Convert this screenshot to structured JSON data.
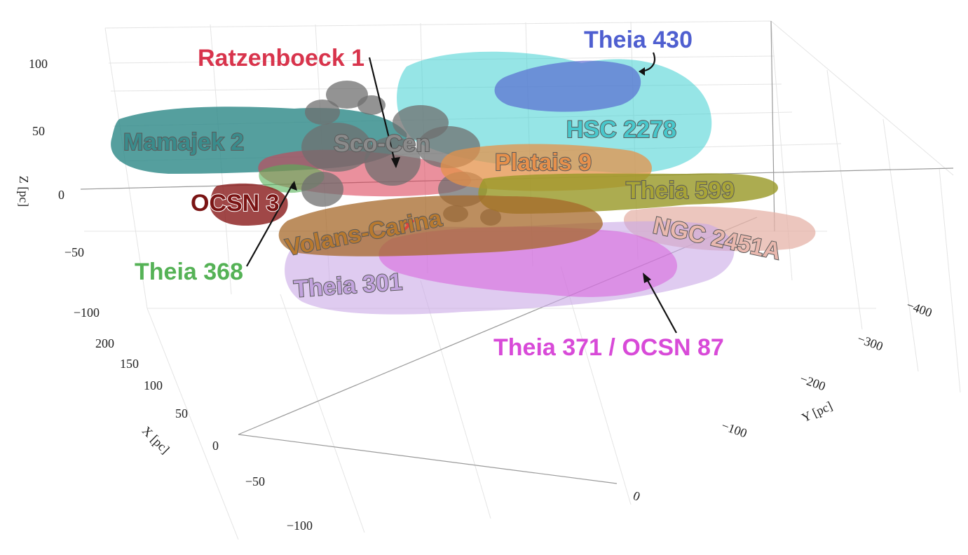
{
  "chart_data": {
    "type": "scatter",
    "projection": "3d",
    "axes": {
      "x": {
        "label": "X [pc]",
        "ticks": [
          "200",
          "150",
          "100",
          "50",
          "0",
          "−50",
          "−100"
        ]
      },
      "y": {
        "label": "Y [pc]",
        "ticks": [
          "−400",
          "−300",
          "−200",
          "−100",
          "0"
        ]
      },
      "z": {
        "label": "Z [pc]",
        "ticks": [
          "100",
          "50",
          "0",
          "−50",
          "−100"
        ]
      }
    },
    "grid": true,
    "marker": {
      "symbol": "×",
      "color": "#e0453a"
    },
    "groups": [
      {
        "id": "mamajek2",
        "name": "Mamajek 2",
        "color": "#2f8a89",
        "label_color": "#3a8c8c"
      },
      {
        "id": "scocen",
        "name": "Sco-Cen",
        "color": "#7a7a7a",
        "label_color": "#8a8a8a"
      },
      {
        "id": "hsc2278",
        "name": "HSC 2278",
        "color": "#3fd0d2",
        "label_color": "#48c8cc"
      },
      {
        "id": "platais9",
        "name": "Platais 9",
        "color": "#e4924a",
        "label_color": "#e7904b"
      },
      {
        "id": "theia599",
        "name": "Theia 599",
        "color": "#9a9a2a",
        "label_color": "#a8a436"
      },
      {
        "id": "ngc2451a",
        "name": "NGC 2451A",
        "color": "#e6b3a8",
        "label_color": "#e9b8ae"
      },
      {
        "id": "ocsn3",
        "name": "OCSN 3",
        "color": "#8b1f1f",
        "label_color": "#7a1414"
      },
      {
        "id": "volans",
        "name": "Volans-Carina",
        "color": "#a6682a",
        "label_color": "#b8792f"
      },
      {
        "id": "theia301",
        "name": "Theia 301",
        "color": "#c9a8e6",
        "label_color": "#c2a3de"
      }
    ],
    "callouts": [
      {
        "id": "ratzenboeck1",
        "name": "Ratzenboeck 1",
        "color": "#d8344c"
      },
      {
        "id": "theia430",
        "name": "Theia 430",
        "color": "#4f5fd0"
      },
      {
        "id": "theia368",
        "name": "Theia 368",
        "color": "#55b256"
      },
      {
        "id": "theia371",
        "name": "Theia 371 / OCSN 87",
        "color": "#d84ad8"
      }
    ]
  }
}
